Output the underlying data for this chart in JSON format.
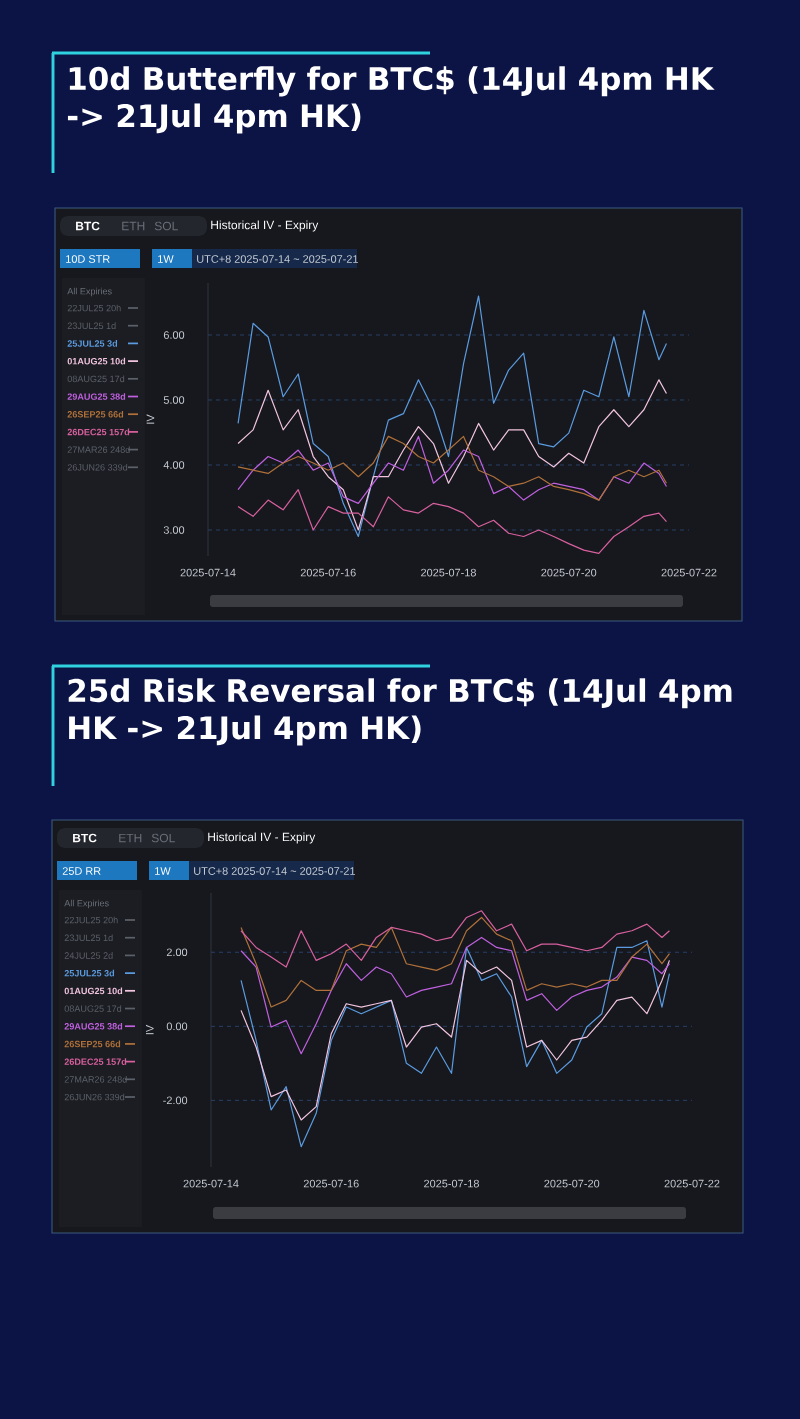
{
  "chart_data": [
    {
      "type": "line",
      "title": "10d Butterfly for BTC$ (14Jul 4pm HK -> 21Jul 4pm HK)",
      "ylabel": "IV",
      "annotations": [
        "BTC",
        "ETH",
        "SOL",
        "Historical IV - Expiry",
        "10D STR",
        "1W",
        "UTC+8 2025-07-14 ~ 2025-07-21",
        "All Expiries"
      ],
      "x": [
        "2025-07-14T12:00",
        "2025-07-14T18:00",
        "2025-07-15T00:00",
        "2025-07-15T06:00",
        "2025-07-15T12:00",
        "2025-07-15T18:00",
        "2025-07-16T00:00",
        "2025-07-16T06:00",
        "2025-07-16T12:00",
        "2025-07-16T18:00",
        "2025-07-17T00:00",
        "2025-07-17T06:00",
        "2025-07-17T12:00",
        "2025-07-17T18:00",
        "2025-07-18T00:00",
        "2025-07-18T06:00",
        "2025-07-18T12:00",
        "2025-07-18T18:00",
        "2025-07-19T00:00",
        "2025-07-19T06:00",
        "2025-07-19T12:00",
        "2025-07-19T18:00",
        "2025-07-20T00:00",
        "2025-07-20T06:00",
        "2025-07-20T12:00",
        "2025-07-20T18:00",
        "2025-07-21T00:00",
        "2025-07-21T06:00",
        "2025-07-21T12:00",
        "2025-07-21T15:00"
      ],
      "series": [
        {
          "name": "22JUL25 20h",
          "color": "#5c6069",
          "values": [
            null,
            null,
            null,
            null,
            null,
            null,
            null,
            null,
            null,
            null,
            null,
            null,
            null,
            null,
            null,
            null,
            null,
            null,
            null,
            null,
            null,
            null,
            null,
            null,
            null,
            null,
            null,
            null,
            null,
            null
          ]
        },
        {
          "name": "23JUL25 1d",
          "color": "#5c6069",
          "values": [
            null,
            null,
            null,
            null,
            null,
            null,
            null,
            null,
            null,
            null,
            null,
            null,
            null,
            null,
            null,
            null,
            null,
            null,
            null,
            null,
            null,
            null,
            null,
            null,
            null,
            null,
            null,
            null,
            null,
            null
          ]
        },
        {
          "name": "25JUL25 3d",
          "color": "#5b9be0",
          "values": [
            4.64,
            6.18,
            5.97,
            5.05,
            5.4,
            4.33,
            4.13,
            3.41,
            2.9,
            3.82,
            4.69,
            4.79,
            5.31,
            4.85,
            4.13,
            5.56,
            6.6,
            4.95,
            5.46,
            5.72,
            4.33,
            4.28,
            4.49,
            5.15,
            5.05,
            5.97,
            5.05,
            6.38,
            5.62,
            5.87
          ]
        },
        {
          "name": "01AUG25 10d",
          "color": "#f2c4e0",
          "values": [
            4.33,
            4.54,
            5.15,
            4.54,
            4.85,
            4.13,
            3.82,
            3.62,
            3.0,
            3.82,
            3.82,
            4.23,
            4.59,
            4.33,
            3.72,
            4.13,
            4.64,
            4.23,
            4.54,
            4.54,
            4.13,
            3.97,
            4.18,
            4.03,
            4.59,
            4.85,
            4.59,
            4.85,
            5.31,
            5.1
          ]
        },
        {
          "name": "08AUG25 17d",
          "color": "#5c6069",
          "values": [
            null,
            null,
            null,
            null,
            null,
            null,
            null,
            null,
            null,
            null,
            null,
            null,
            null,
            null,
            null,
            null,
            null,
            null,
            null,
            null,
            null,
            null,
            null,
            null,
            null,
            null,
            null,
            null,
            null,
            null
          ]
        },
        {
          "name": "29AUG25 38d",
          "color": "#c060e0",
          "values": [
            3.62,
            3.92,
            4.13,
            4.03,
            4.23,
            3.92,
            4.03,
            3.51,
            3.41,
            3.72,
            4.03,
            3.92,
            4.44,
            3.72,
            3.92,
            4.23,
            4.13,
            3.56,
            3.67,
            3.46,
            3.62,
            3.72,
            3.67,
            3.62,
            3.46,
            3.82,
            3.72,
            4.03,
            3.87,
            3.67
          ]
        },
        {
          "name": "26SEP25 66d",
          "color": "#b0703a",
          "values": [
            3.97,
            3.92,
            3.87,
            4.03,
            4.13,
            4.03,
            3.92,
            4.03,
            3.82,
            4.03,
            4.44,
            4.33,
            4.13,
            4.03,
            4.23,
            4.44,
            3.92,
            3.82,
            3.67,
            3.72,
            3.82,
            3.67,
            3.62,
            3.56,
            3.46,
            3.82,
            3.92,
            3.82,
            3.92,
            3.72
          ]
        },
        {
          "name": "26DEC25 157d",
          "color": "#d9609f",
          "values": [
            3.36,
            3.21,
            3.46,
            3.31,
            3.62,
            3.0,
            3.36,
            3.26,
            3.26,
            3.05,
            3.51,
            3.31,
            3.26,
            3.41,
            3.36,
            3.26,
            3.05,
            3.15,
            2.95,
            2.9,
            3.0,
            2.9,
            2.79,
            2.69,
            2.64,
            2.9,
            3.05,
            3.21,
            3.26,
            3.13
          ]
        },
        {
          "name": "27MAR26 248d",
          "color": "#5c6069",
          "values": [
            null,
            null,
            null,
            null,
            null,
            null,
            null,
            null,
            null,
            null,
            null,
            null,
            null,
            null,
            null,
            null,
            null,
            null,
            null,
            null,
            null,
            null,
            null,
            null,
            null,
            null,
            null,
            null,
            null,
            null
          ]
        },
        {
          "name": "26JUN26 339d",
          "color": "#5c6069",
          "values": [
            null,
            null,
            null,
            null,
            null,
            null,
            null,
            null,
            null,
            null,
            null,
            null,
            null,
            null,
            null,
            null,
            null,
            null,
            null,
            null,
            null,
            null,
            null,
            null,
            null,
            null,
            null,
            null,
            null,
            null
          ]
        }
      ],
      "xlim": [
        "2025-07-14",
        "2025-07-22"
      ],
      "xticks": [
        "2025-07-14",
        "2025-07-16",
        "2025-07-18",
        "2025-07-20",
        "2025-07-22"
      ],
      "ylim": [
        2.6,
        6.8
      ],
      "yticks": [
        {
          "value": 3,
          "label": "3.00"
        },
        {
          "value": 4,
          "label": "4.00"
        },
        {
          "value": 5,
          "label": "5.00"
        },
        {
          "value": 6,
          "label": "6.00"
        }
      ],
      "grid": "y",
      "legend": "left"
    },
    {
      "type": "line",
      "title": "25d Risk Reversal for BTC$ (14Jul 4pm HK -> 21Jul 4pm HK)",
      "ylabel": "IV",
      "annotations": [
        "BTC",
        "ETH",
        "SOL",
        "Historical IV - Expiry",
        "25D RR",
        "1W",
        "UTC+8 2025-07-14 ~ 2025-07-21",
        "All Expiries"
      ],
      "x": [
        "2025-07-14T12:00",
        "2025-07-14T18:00",
        "2025-07-15T00:00",
        "2025-07-15T06:00",
        "2025-07-15T12:00",
        "2025-07-15T18:00",
        "2025-07-16T00:00",
        "2025-07-16T06:00",
        "2025-07-16T12:00",
        "2025-07-16T18:00",
        "2025-07-17T00:00",
        "2025-07-17T06:00",
        "2025-07-17T12:00",
        "2025-07-17T18:00",
        "2025-07-18T00:00",
        "2025-07-18T06:00",
        "2025-07-18T12:00",
        "2025-07-18T18:00",
        "2025-07-19T00:00",
        "2025-07-19T06:00",
        "2025-07-19T12:00",
        "2025-07-19T18:00",
        "2025-07-20T00:00",
        "2025-07-20T06:00",
        "2025-07-20T12:00",
        "2025-07-20T18:00",
        "2025-07-21T00:00",
        "2025-07-21T06:00",
        "2025-07-21T12:00",
        "2025-07-21T15:00"
      ],
      "series": [
        {
          "name": "22JUL25 20h",
          "color": "#5c6069",
          "values": [
            null,
            null,
            null,
            null,
            null,
            null,
            null,
            null,
            null,
            null,
            null,
            null,
            null,
            null,
            null,
            null,
            null,
            null,
            null,
            null,
            null,
            null,
            null,
            null,
            null,
            null,
            null,
            null,
            null,
            null
          ]
        },
        {
          "name": "23JUL25 1d",
          "color": "#5c6069",
          "values": [
            null,
            null,
            null,
            null,
            null,
            null,
            null,
            null,
            null,
            null,
            null,
            null,
            null,
            null,
            null,
            null,
            null,
            null,
            null,
            null,
            null,
            null,
            null,
            null,
            null,
            null,
            null,
            null,
            null,
            null
          ]
        },
        {
          "name": "24JUL25 2d",
          "color": "#5c6069",
          "values": [
            null,
            null,
            null,
            null,
            null,
            null,
            null,
            null,
            null,
            null,
            null,
            null,
            null,
            null,
            null,
            null,
            null,
            null,
            null,
            null,
            null,
            null,
            null,
            null,
            null,
            null,
            null,
            null,
            null,
            null
          ]
        },
        {
          "name": "25JUL25 3d",
          "color": "#5b9be0",
          "values": [
            1.24,
            -0.38,
            -2.26,
            -1.63,
            -3.25,
            -2.35,
            -0.38,
            0.52,
            0.34,
            0.52,
            0.7,
            -1.0,
            -1.27,
            -0.56,
            -1.27,
            2.13,
            1.24,
            1.42,
            0.79,
            -1.09,
            -0.38,
            -1.27,
            -0.91,
            -0.02,
            0.34,
            2.13,
            2.13,
            2.31,
            0.52,
            1.42
          ]
        },
        {
          "name": "01AUG25 10d",
          "color": "#f2c4e0",
          "values": [
            0.43,
            -0.56,
            -1.9,
            -1.72,
            -2.53,
            -2.17,
            -0.2,
            0.61,
            0.52,
            0.61,
            0.7,
            -0.56,
            -0.02,
            0.07,
            -0.29,
            1.78,
            1.42,
            1.6,
            1.24,
            -0.56,
            -0.38,
            -0.91,
            -0.38,
            -0.29,
            0.16,
            0.7,
            0.79,
            0.34,
            1.24,
            1.78
          ]
        },
        {
          "name": "08AUG25 17d",
          "color": "#5c6069",
          "values": [
            null,
            null,
            null,
            null,
            null,
            null,
            null,
            null,
            null,
            null,
            null,
            null,
            null,
            null,
            null,
            null,
            null,
            null,
            null,
            null,
            null,
            null,
            null,
            null,
            null,
            null,
            null,
            null,
            null,
            null
          ]
        },
        {
          "name": "29AUG25 38d",
          "color": "#c060e0",
          "values": [
            2.04,
            1.6,
            -0.02,
            0.16,
            -0.74,
            0.07,
            0.97,
            1.69,
            1.24,
            1.6,
            1.42,
            0.79,
            0.97,
            1.06,
            1.15,
            2.13,
            2.4,
            2.13,
            2.04,
            0.7,
            0.88,
            0.43,
            0.79,
            0.97,
            1.06,
            1.33,
            1.87,
            1.78,
            1.42,
            1.69
          ]
        },
        {
          "name": "26SEP25 66d",
          "color": "#b0703a",
          "values": [
            2.67,
            1.69,
            0.52,
            0.7,
            1.24,
            0.97,
            0.97,
            2.04,
            2.22,
            2.13,
            2.67,
            1.69,
            1.6,
            1.51,
            1.69,
            2.58,
            2.94,
            2.49,
            2.31,
            0.97,
            1.15,
            1.06,
            1.15,
            1.06,
            1.24,
            1.24,
            1.87,
            2.22,
            1.69,
            1.96
          ]
        },
        {
          "name": "26DEC25 157d",
          "color": "#d9609f",
          "values": [
            2.58,
            2.13,
            1.87,
            1.6,
            2.58,
            1.78,
            1.96,
            2.22,
            1.78,
            2.4,
            2.67,
            2.58,
            2.49,
            2.31,
            2.4,
            2.94,
            3.12,
            2.58,
            2.76,
            2.04,
            2.22,
            2.22,
            2.13,
            2.04,
            2.13,
            2.49,
            2.58,
            2.76,
            2.4,
            2.58
          ]
        },
        {
          "name": "27MAR26 248d",
          "color": "#5c6069",
          "values": [
            null,
            null,
            null,
            null,
            null,
            null,
            null,
            null,
            null,
            null,
            null,
            null,
            null,
            null,
            null,
            null,
            null,
            null,
            null,
            null,
            null,
            null,
            null,
            null,
            null,
            null,
            null,
            null,
            null,
            null
          ]
        },
        {
          "name": "26JUN26 339d",
          "color": "#5c6069",
          "values": [
            null,
            null,
            null,
            null,
            null,
            null,
            null,
            null,
            null,
            null,
            null,
            null,
            null,
            null,
            null,
            null,
            null,
            null,
            null,
            null,
            null,
            null,
            null,
            null,
            null,
            null,
            null,
            null,
            null,
            null
          ]
        }
      ],
      "xlim": [
        "2025-07-14",
        "2025-07-22"
      ],
      "xticks": [
        "2025-07-14",
        "2025-07-16",
        "2025-07-18",
        "2025-07-20",
        "2025-07-22"
      ],
      "ylim": [
        -3.8,
        3.6
      ],
      "yticks": [
        {
          "value": -2,
          "label": "-2.00"
        },
        {
          "value": 0,
          "label": "0.00"
        },
        {
          "value": 2,
          "label": "2.00"
        }
      ],
      "grid": "y",
      "legend": "left"
    }
  ]
}
